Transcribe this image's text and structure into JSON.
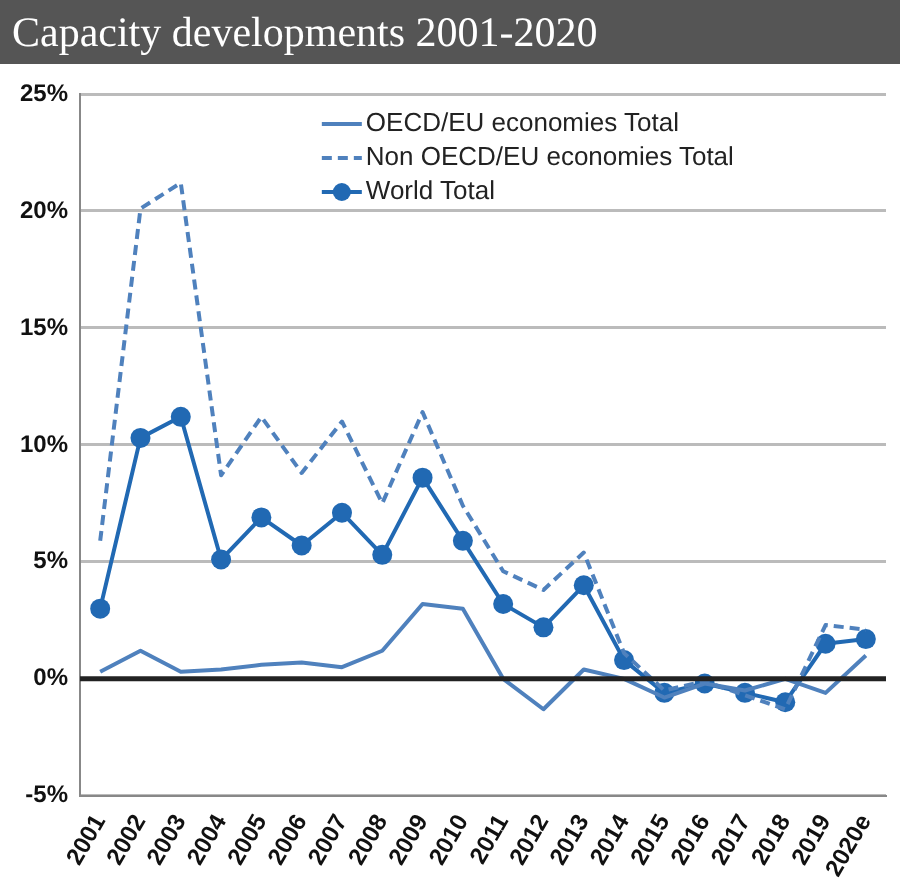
{
  "chart_data": {
    "type": "line",
    "title": "Capacity developments 2001-2020",
    "categories": [
      "2001",
      "2002",
      "2003",
      "2004",
      "2005",
      "2006",
      "2007",
      "2008",
      "2009",
      "2010",
      "2011",
      "2012",
      "2013",
      "2014",
      "2015",
      "2016",
      "2017",
      "2018",
      "2019",
      "2020e"
    ],
    "series": [
      {
        "name": "OECD/EU economies Total",
        "color": "#4f81bd",
        "line_style": "solid",
        "marker": "none",
        "values": [
          0.3,
          1.2,
          0.3,
          0.4,
          0.6,
          0.7,
          0.5,
          1.2,
          3.2,
          3.0,
          0.0,
          -1.3,
          0.4,
          0.0,
          -0.8,
          -0.2,
          -0.5,
          0.0,
          -0.6,
          1.0
        ]
      },
      {
        "name": "Non OECD/EU economies Total",
        "color": "#4f81bd",
        "line_style": "dashed",
        "marker": "none",
        "values": [
          5.9,
          20.1,
          21.2,
          8.7,
          11.2,
          8.8,
          11.0,
          7.5,
          11.4,
          7.4,
          4.6,
          3.8,
          5.4,
          1.1,
          -0.5,
          -0.1,
          -0.7,
          -1.3,
          2.3,
          2.1
        ]
      },
      {
        "name": "World Total",
        "color": "#2169b3",
        "line_style": "solid",
        "marker": "circle",
        "values": [
          3.0,
          10.3,
          11.2,
          5.1,
          6.9,
          5.7,
          7.1,
          5.3,
          8.6,
          5.9,
          3.2,
          2.2,
          4.0,
          0.8,
          -0.6,
          -0.2,
          -0.6,
          -1.0,
          1.5,
          1.7
        ]
      }
    ],
    "ylim": [
      -5,
      25
    ],
    "yticks": [
      {
        "value": -5,
        "label": "-5%"
      },
      {
        "value": 0,
        "label": "0%"
      },
      {
        "value": 5,
        "label": "5%"
      },
      {
        "value": 10,
        "label": "10%"
      },
      {
        "value": 15,
        "label": "15%"
      },
      {
        "value": 20,
        "label": "20%"
      },
      {
        "value": 25,
        "label": "25%"
      }
    ],
    "grid": "y",
    "legend": "top",
    "ref_lines": [
      {
        "axis": "y",
        "value": 0,
        "color": "#222222"
      }
    ]
  }
}
